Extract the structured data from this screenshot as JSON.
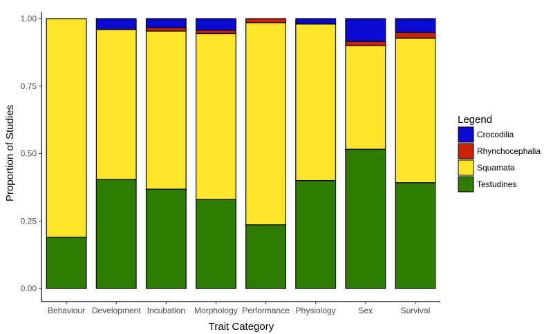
{
  "chart_data": {
    "type": "bar",
    "stacked": true,
    "title": "",
    "xlabel": "Trait Category",
    "ylabel": "Proportion of Studies",
    "ylim": [
      0,
      1
    ],
    "yticks": [
      "0.00",
      "0.25",
      "0.50",
      "0.75",
      "1.00"
    ],
    "ytick_values": [
      0,
      0.25,
      0.5,
      0.75,
      1.0
    ],
    "categories": [
      "Behaviour",
      "Development",
      "Incubation",
      "Morphology",
      "Performance",
      "Physiology",
      "Sex",
      "Survival"
    ],
    "series": [
      {
        "name": "Testudines",
        "color": "#2e7d00",
        "values": [
          0.19,
          0.404,
          0.368,
          0.33,
          0.236,
          0.4,
          0.516,
          0.392
        ]
      },
      {
        "name": "Squamata",
        "color": "#ffe52a",
        "values": [
          0.81,
          0.556,
          0.586,
          0.615,
          0.749,
          0.58,
          0.384,
          0.536
        ]
      },
      {
        "name": "Rhynchocephalia",
        "color": "#cc2200",
        "values": [
          0.0,
          0.0,
          0.012,
          0.012,
          0.015,
          0.0,
          0.015,
          0.02
        ]
      },
      {
        "name": "Crocodilia",
        "color": "#0a0ad2",
        "values": [
          0.0,
          0.04,
          0.034,
          0.043,
          0.0,
          0.02,
          0.085,
          0.052
        ]
      }
    ],
    "legend": {
      "title": "Legend",
      "position": "right",
      "order": [
        "Crocodilia",
        "Rhynchocephalia",
        "Squamata",
        "Testudines"
      ]
    },
    "grid": false
  }
}
